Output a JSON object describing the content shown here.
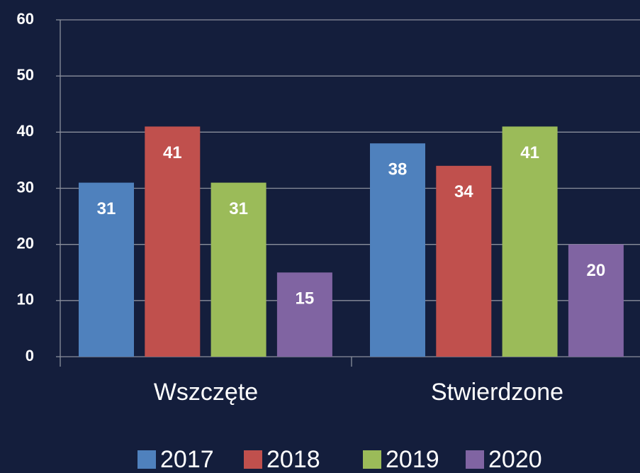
{
  "chart_data": {
    "type": "bar",
    "categories": [
      "Wszczęte",
      "Stwierdzone"
    ],
    "series": [
      {
        "name": "2017",
        "color": "#4f81bd",
        "values": [
          31,
          38
        ]
      },
      {
        "name": "2018",
        "color": "#c0504d",
        "values": [
          41,
          34
        ]
      },
      {
        "name": "2019",
        "color": "#9bbb59",
        "values": [
          31,
          41
        ]
      },
      {
        "name": "2020",
        "color": "#8064a2",
        "values": [
          15,
          20
        ]
      }
    ],
    "ylim": [
      0,
      60
    ],
    "yticks": [
      0,
      10,
      20,
      30,
      40,
      50,
      60
    ],
    "grid": true,
    "legend": "bottom"
  }
}
